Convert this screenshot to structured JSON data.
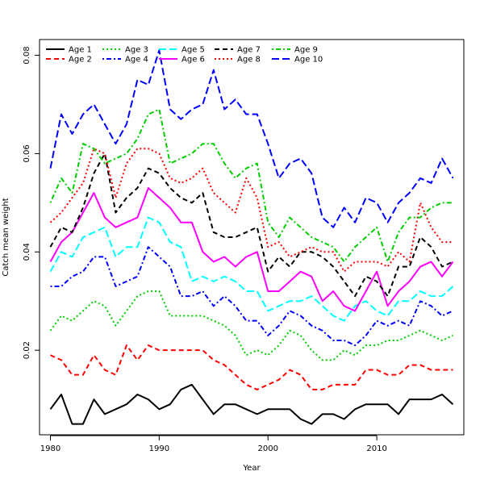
{
  "chart_data": {
    "type": "line",
    "title": "",
    "xlabel": "Year",
    "ylabel": "Catch mean weight",
    "xlim": [
      1979,
      2018
    ],
    "ylim": [
      0.0028,
      0.0832
    ],
    "xticks": [
      1980,
      1990,
      2000,
      2010
    ],
    "yticks": [
      0.02,
      0.04,
      0.06,
      0.08
    ],
    "ytick_labels": [
      "0.02",
      "0.04",
      "0.06",
      "0.08"
    ],
    "legend_position": "top-left",
    "x": [
      1980,
      1981,
      1982,
      1983,
      1984,
      1985,
      1986,
      1987,
      1988,
      1989,
      1990,
      1991,
      1992,
      1993,
      1994,
      1995,
      1996,
      1997,
      1998,
      1999,
      2000,
      2001,
      2002,
      2003,
      2004,
      2005,
      2006,
      2007,
      2008,
      2009,
      2010,
      2011,
      2012,
      2013,
      2014,
      2015,
      2016,
      2017
    ],
    "series": [
      {
        "name": "Age 1",
        "color": "#000000",
        "dash": "solid",
        "values": [
          0.008,
          0.011,
          0.005,
          0.005,
          0.01,
          0.007,
          0.008,
          0.009,
          0.011,
          0.01,
          0.008,
          0.009,
          0.012,
          0.013,
          0.01,
          0.007,
          0.009,
          0.009,
          0.008,
          0.007,
          0.008,
          0.008,
          0.008,
          0.006,
          0.005,
          0.007,
          0.007,
          0.006,
          0.008,
          0.009,
          0.009,
          0.009,
          0.007,
          0.01,
          0.01,
          0.01,
          0.011,
          0.009
        ]
      },
      {
        "name": "Age 2",
        "color": "#ff0000",
        "dash": "dashed",
        "values": [
          0.019,
          0.018,
          0.015,
          0.015,
          0.019,
          0.016,
          0.015,
          0.021,
          0.018,
          0.021,
          0.02,
          0.02,
          0.02,
          0.02,
          0.02,
          0.018,
          0.017,
          0.015,
          0.013,
          0.012,
          0.013,
          0.014,
          0.016,
          0.015,
          0.012,
          0.012,
          0.013,
          0.013,
          0.013,
          0.016,
          0.016,
          0.015,
          0.015,
          0.017,
          0.017,
          0.016,
          0.016,
          0.016
        ]
      },
      {
        "name": "Age 3",
        "color": "#00cd00",
        "dash": "dotted",
        "values": [
          0.024,
          0.027,
          0.026,
          0.028,
          0.03,
          0.029,
          0.025,
          0.028,
          0.031,
          0.032,
          0.032,
          0.027,
          0.027,
          0.027,
          0.027,
          0.026,
          0.025,
          0.023,
          0.019,
          0.02,
          0.019,
          0.021,
          0.024,
          0.023,
          0.02,
          0.018,
          0.018,
          0.02,
          0.019,
          0.021,
          0.021,
          0.022,
          0.022,
          0.023,
          0.024,
          0.023,
          0.022,
          0.023
        ]
      },
      {
        "name": "Age 4",
        "color": "#0000ff",
        "dash": "dotdash",
        "values": [
          0.033,
          0.033,
          0.035,
          0.036,
          0.039,
          0.039,
          0.033,
          0.034,
          0.035,
          0.041,
          0.039,
          0.037,
          0.031,
          0.031,
          0.032,
          0.029,
          0.031,
          0.029,
          0.026,
          0.026,
          0.023,
          0.025,
          0.028,
          0.027,
          0.025,
          0.024,
          0.022,
          0.022,
          0.021,
          0.023,
          0.026,
          0.025,
          0.026,
          0.025,
          0.03,
          0.029,
          0.027,
          0.028
        ]
      },
      {
        "name": "Age 5",
        "color": "#00ffff",
        "dash": "longdash",
        "values": [
          0.036,
          0.04,
          0.039,
          0.043,
          0.044,
          0.045,
          0.039,
          0.041,
          0.041,
          0.047,
          0.046,
          0.042,
          0.041,
          0.034,
          0.035,
          0.034,
          0.035,
          0.034,
          0.032,
          0.032,
          0.028,
          0.029,
          0.03,
          0.03,
          0.031,
          0.029,
          0.027,
          0.026,
          0.029,
          0.03,
          0.028,
          0.027,
          0.03,
          0.03,
          0.032,
          0.031,
          0.031,
          0.033
        ]
      },
      {
        "name": "Age 6",
        "color": "#ff00ff",
        "dash": "solid",
        "values": [
          0.038,
          0.042,
          0.044,
          0.048,
          0.052,
          0.047,
          0.045,
          0.046,
          0.047,
          0.053,
          0.051,
          0.049,
          0.046,
          0.046,
          0.04,
          0.038,
          0.039,
          0.037,
          0.039,
          0.04,
          0.032,
          0.032,
          0.034,
          0.036,
          0.035,
          0.03,
          0.032,
          0.029,
          0.028,
          0.032,
          0.036,
          0.029,
          0.032,
          0.034,
          0.037,
          0.038,
          0.035,
          0.038
        ]
      },
      {
        "name": "Age 7",
        "color": "#000000",
        "dash": "dashed",
        "values": [
          0.041,
          0.045,
          0.044,
          0.049,
          0.056,
          0.06,
          0.048,
          0.051,
          0.053,
          0.057,
          0.056,
          0.053,
          0.051,
          0.05,
          0.052,
          0.044,
          0.043,
          0.043,
          0.044,
          0.045,
          0.036,
          0.039,
          0.037,
          0.04,
          0.04,
          0.039,
          0.037,
          0.034,
          0.031,
          0.035,
          0.034,
          0.031,
          0.037,
          0.037,
          0.043,
          0.041,
          0.037,
          0.038
        ]
      },
      {
        "name": "Age 8",
        "color": "#ff0000",
        "dash": "dotted",
        "values": [
          0.046,
          0.048,
          0.051,
          0.054,
          0.061,
          0.06,
          0.051,
          0.058,
          0.061,
          0.061,
          0.06,
          0.055,
          0.054,
          0.055,
          0.057,
          0.052,
          0.05,
          0.048,
          0.055,
          0.051,
          0.041,
          0.042,
          0.039,
          0.04,
          0.041,
          0.04,
          0.04,
          0.036,
          0.038,
          0.038,
          0.038,
          0.037,
          0.04,
          0.038,
          0.05,
          0.045,
          0.042,
          0.042
        ]
      },
      {
        "name": "Age 9",
        "color": "#00cd00",
        "dash": "dotdash",
        "values": [
          0.05,
          0.055,
          0.052,
          0.062,
          0.061,
          0.058,
          0.059,
          0.06,
          0.063,
          0.068,
          0.069,
          0.058,
          0.059,
          0.06,
          0.062,
          0.062,
          0.058,
          0.055,
          0.057,
          0.058,
          0.046,
          0.043,
          0.047,
          0.045,
          0.043,
          0.042,
          0.041,
          0.038,
          0.041,
          0.043,
          0.045,
          0.038,
          0.044,
          0.047,
          0.047,
          0.049,
          0.05,
          0.05
        ]
      },
      {
        "name": "Age 10",
        "color": "#0000ff",
        "dash": "longdash",
        "values": [
          0.057,
          0.068,
          0.064,
          0.068,
          0.07,
          0.066,
          0.062,
          0.066,
          0.075,
          0.074,
          0.081,
          0.069,
          0.067,
          0.069,
          0.07,
          0.077,
          0.069,
          0.071,
          0.068,
          0.068,
          0.062,
          0.055,
          0.058,
          0.059,
          0.056,
          0.047,
          0.045,
          0.049,
          0.046,
          0.051,
          0.05,
          0.046,
          0.05,
          0.052,
          0.055,
          0.054,
          0.059,
          0.055
        ]
      }
    ]
  }
}
